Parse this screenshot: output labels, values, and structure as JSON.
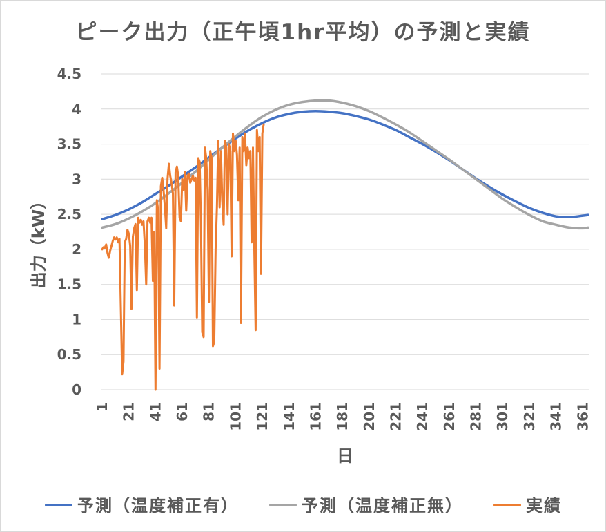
{
  "chart_data": {
    "type": "line",
    "title": "ピーク出力（正午頃1hr平均）の予測と実績",
    "xlabel": "日",
    "ylabel": "出力（kW）",
    "xlim": [
      1,
      365
    ],
    "ylim": [
      0,
      4.5
    ],
    "x_ticks": [
      "1",
      "21",
      "41",
      "61",
      "81",
      "101",
      "121",
      "141",
      "161",
      "181",
      "201",
      "221",
      "241",
      "261",
      "281",
      "301",
      "321",
      "341",
      "361"
    ],
    "y_ticks": [
      "0",
      "0.5",
      "1",
      "1.5",
      "2",
      "2.5",
      "3",
      "3.5",
      "4",
      "4.5"
    ],
    "grid": "horizontal",
    "legend": "bottom",
    "series": [
      {
        "name": "予測（温度補正有）",
        "color": "#4472C4",
        "x": [
          1,
          11,
          21,
          31,
          41,
          51,
          61,
          71,
          81,
          91,
          101,
          111,
          121,
          131,
          141,
          151,
          161,
          171,
          181,
          191,
          201,
          211,
          221,
          231,
          241,
          251,
          261,
          271,
          281,
          291,
          301,
          311,
          321,
          331,
          341,
          351,
          361,
          365
        ],
        "values": [
          2.43,
          2.49,
          2.57,
          2.67,
          2.79,
          2.91,
          3.04,
          3.17,
          3.31,
          3.45,
          3.58,
          3.7,
          3.8,
          3.88,
          3.93,
          3.96,
          3.97,
          3.96,
          3.94,
          3.9,
          3.85,
          3.78,
          3.7,
          3.6,
          3.5,
          3.39,
          3.27,
          3.14,
          3.01,
          2.89,
          2.78,
          2.68,
          2.59,
          2.52,
          2.47,
          2.46,
          2.48,
          2.49
        ]
      },
      {
        "name": "予測（温度補正無）",
        "color": "#A5A5A5",
        "x": [
          1,
          11,
          21,
          31,
          41,
          51,
          61,
          71,
          81,
          91,
          101,
          111,
          121,
          131,
          141,
          151,
          161,
          171,
          181,
          191,
          201,
          211,
          221,
          231,
          241,
          251,
          261,
          271,
          281,
          291,
          301,
          311,
          321,
          331,
          341,
          351,
          361,
          365
        ],
        "values": [
          2.31,
          2.36,
          2.44,
          2.54,
          2.66,
          2.8,
          2.95,
          3.11,
          3.28,
          3.45,
          3.61,
          3.76,
          3.89,
          3.99,
          4.06,
          4.1,
          4.12,
          4.12,
          4.09,
          4.04,
          3.97,
          3.88,
          3.78,
          3.67,
          3.54,
          3.41,
          3.28,
          3.14,
          3.0,
          2.86,
          2.72,
          2.6,
          2.49,
          2.4,
          2.35,
          2.31,
          2.3,
          2.31
        ]
      },
      {
        "name": "実績",
        "color": "#ED7D31",
        "x": [
          1,
          2,
          3,
          4,
          5,
          6,
          7,
          8,
          9,
          10,
          11,
          12,
          13,
          14,
          15,
          16,
          17,
          18,
          19,
          20,
          21,
          22,
          23,
          24,
          25,
          26,
          27,
          28,
          29,
          30,
          31,
          32,
          33,
          34,
          35,
          36,
          37,
          38,
          39,
          40,
          41,
          42,
          43,
          44,
          45,
          46,
          47,
          48,
          49,
          50,
          51,
          52,
          53,
          54,
          55,
          56,
          57,
          58,
          59,
          60,
          61,
          62,
          63,
          64,
          65,
          66,
          67,
          68,
          69,
          70,
          71,
          72,
          73,
          74,
          75,
          76,
          77,
          78,
          79,
          80,
          81,
          82,
          83,
          84,
          85,
          86,
          87,
          88,
          89,
          90,
          91,
          92,
          93,
          94,
          95,
          96,
          97,
          98,
          99,
          100,
          101,
          102,
          103,
          104,
          105,
          106,
          107,
          108,
          109,
          110,
          111,
          112,
          113,
          114,
          115,
          116,
          117,
          118,
          119,
          120,
          121,
          122
        ],
        "values": [
          2.0,
          2.03,
          2.02,
          2.07,
          1.95,
          1.88,
          1.98,
          2.05,
          2.12,
          2.17,
          2.14,
          2.17,
          2.1,
          2.15,
          1.2,
          0.22,
          0.4,
          2.1,
          2.15,
          2.28,
          2.22,
          2.05,
          1.15,
          2.18,
          2.3,
          2.36,
          1.42,
          2.45,
          2.38,
          2.42,
          2.35,
          2.4,
          2.05,
          1.5,
          2.4,
          2.45,
          2.38,
          2.45,
          1.55,
          2.25,
          0.0,
          2.7,
          2.55,
          0.3,
          2.9,
          3.02,
          2.85,
          2.6,
          2.3,
          3.0,
          3.22,
          3.05,
          2.95,
          2.8,
          1.2,
          3.1,
          3.18,
          3.05,
          2.45,
          2.4,
          3.0,
          2.85,
          3.1,
          2.55,
          3.05,
          3.08,
          2.95,
          3.0,
          3.05,
          2.98,
          3.02,
          1.03,
          3.3,
          3.25,
          2.4,
          0.82,
          0.75,
          3.45,
          3.3,
          2.85,
          1.25,
          3.4,
          3.3,
          0.62,
          0.68,
          2.0,
          2.6,
          3.55,
          2.6,
          3.4,
          2.7,
          2.35,
          3.55,
          3.45,
          2.5,
          3.5,
          3.4,
          1.9,
          3.65,
          3.4,
          3.55,
          3.35,
          2.7,
          3.45,
          0.95,
          3.6,
          3.4,
          3.65,
          3.2,
          3.45,
          3.3,
          3.4,
          2.1,
          3.45,
          2.0,
          0.85,
          3.7,
          3.4,
          3.6,
          1.65,
          3.65,
          3.78
        ]
      }
    ]
  }
}
